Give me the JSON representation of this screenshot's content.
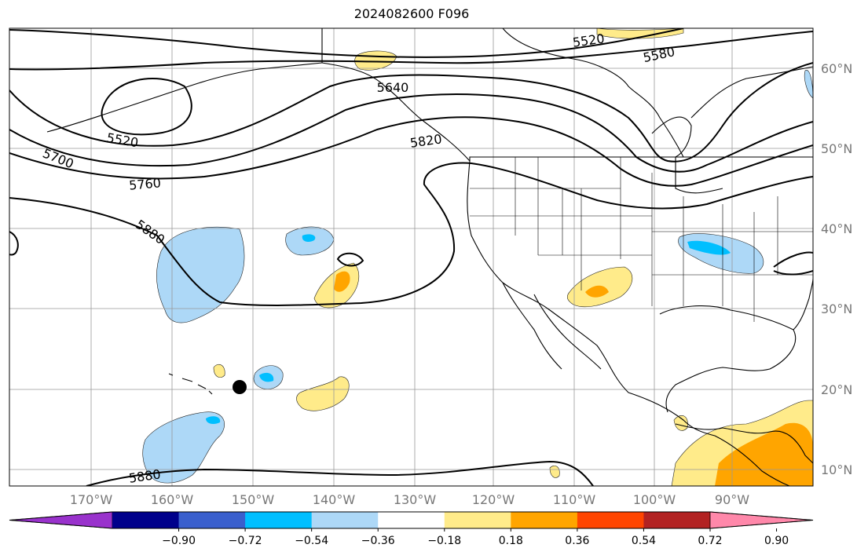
{
  "title": "2024082600 F096",
  "map": {
    "lat_labels": [
      "60°N",
      "50°N",
      "40°N",
      "30°N",
      "20°N",
      "10°N"
    ],
    "lon_labels": [
      "170°W",
      "160°W",
      "150°W",
      "140°W",
      "130°W",
      "120°W",
      "110°W",
      "100°W",
      "90°W"
    ],
    "contour_labels": [
      "5520",
      "5580",
      "5640",
      "5520",
      "5700",
      "5760",
      "5820",
      "5880",
      "5880"
    ]
  },
  "colorbar": {
    "ticks": [
      "−0.90",
      "−0.72",
      "−0.54",
      "−0.36",
      "−0.18",
      "0.18",
      "0.36",
      "0.54",
      "0.72",
      "0.90"
    ],
    "colors": [
      "#9932cc",
      "#00008b",
      "#3a5fcd",
      "#00bfff",
      "#add8f7",
      "#ffffff",
      "#ffeb8a",
      "#ffa500",
      "#ff4500",
      "#b22222",
      "#ff88aa"
    ]
  }
}
